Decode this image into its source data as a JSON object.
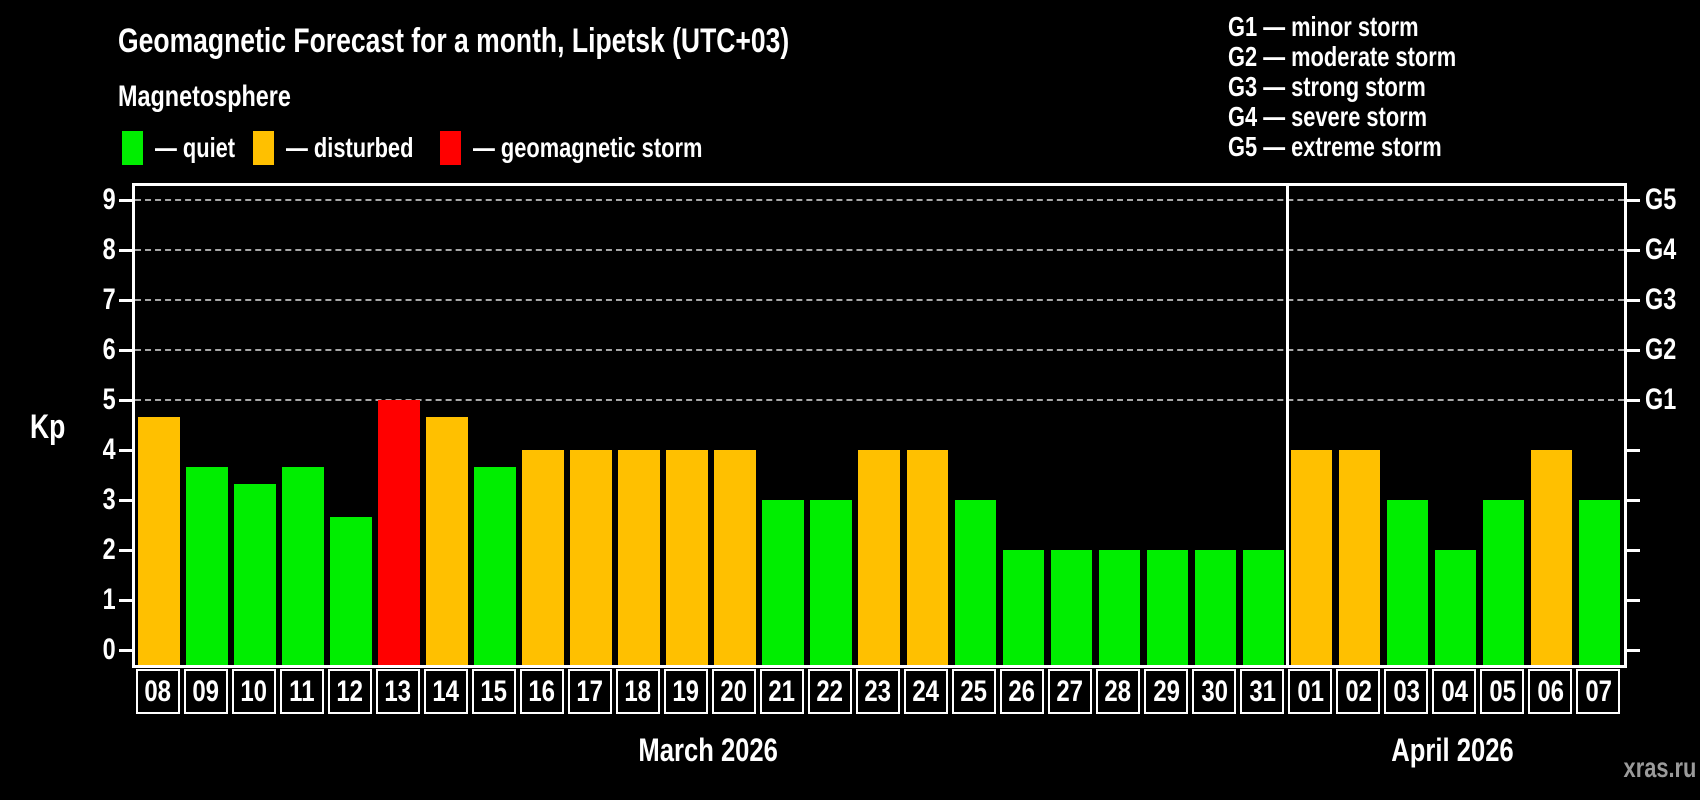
{
  "header": {
    "title": "Geomagnetic Forecast for a month, Lipetsk (UTC+03)",
    "subtitle": "Magnetosphere"
  },
  "legend": {
    "items": [
      {
        "name": "quiet",
        "label": "— quiet",
        "state": "quiet"
      },
      {
        "name": "disturbed",
        "label": "— disturbed",
        "state": "disturbed"
      },
      {
        "name": "storm",
        "label": "— geomagnetic storm",
        "state": "storm"
      }
    ],
    "positions_x": [
      122,
      253,
      440
    ]
  },
  "g_legend": [
    "G1 — minor storm",
    "G2 — moderate storm",
    "G3 — strong storm",
    "G4 — severe storm",
    "G5 — extreme storm"
  ],
  "axis": {
    "y_label": "Kp"
  },
  "months": [
    {
      "label": "March 2026",
      "slots": 24
    },
    {
      "label": "April 2026",
      "slots": 7
    }
  ],
  "watermark": "xras.ru",
  "colors": {
    "quiet": "#00ee00",
    "disturbed": "#ffc000",
    "storm": "#ff0000",
    "background": "#000000",
    "grid": "#a8a8a8",
    "axis": "#ffffff",
    "watermark": "#9b9b9b"
  },
  "chart_data": {
    "type": "bar",
    "title": "Geomagnetic Forecast for a month, Lipetsk (UTC+03)",
    "xlabel": "",
    "ylabel": "Kp",
    "ylim": [
      0,
      9
    ],
    "y_ticks": [
      0,
      1,
      2,
      3,
      4,
      5,
      6,
      7,
      8,
      9
    ],
    "gridlines_at": [
      5,
      6,
      7,
      8,
      9
    ],
    "grid": "dashed, horizontal at Kp 5-9 only",
    "legend_position": "top",
    "right_axis_labels": [
      {
        "kp": 5,
        "label": "G1"
      },
      {
        "kp": 6,
        "label": "G2"
      },
      {
        "kp": 7,
        "label": "G3"
      },
      {
        "kp": 8,
        "label": "G4"
      },
      {
        "kp": 9,
        "label": "G5"
      }
    ],
    "categories": [
      "08",
      "09",
      "10",
      "11",
      "12",
      "13",
      "14",
      "15",
      "16",
      "17",
      "18",
      "19",
      "20",
      "21",
      "22",
      "23",
      "24",
      "25",
      "26",
      "27",
      "28",
      "29",
      "30",
      "31",
      "01",
      "02",
      "03",
      "04",
      "05",
      "06",
      "07"
    ],
    "values": [
      4.67,
      3.67,
      3.33,
      3.67,
      2.67,
      5,
      4.67,
      3.67,
      4,
      4,
      4,
      4,
      4,
      3,
      3,
      4,
      4,
      3,
      2,
      2,
      2,
      2,
      2,
      2,
      4,
      4,
      3,
      2,
      3,
      4,
      3
    ],
    "bars": [
      {
        "day": "08",
        "month": "March 2026",
        "value": 4.67,
        "state": "disturbed"
      },
      {
        "day": "09",
        "month": "March 2026",
        "value": 3.67,
        "state": "quiet"
      },
      {
        "day": "10",
        "month": "March 2026",
        "value": 3.33,
        "state": "quiet"
      },
      {
        "day": "11",
        "month": "March 2026",
        "value": 3.67,
        "state": "quiet"
      },
      {
        "day": "12",
        "month": "March 2026",
        "value": 2.67,
        "state": "quiet"
      },
      {
        "day": "13",
        "month": "March 2026",
        "value": 5.0,
        "state": "storm"
      },
      {
        "day": "14",
        "month": "March 2026",
        "value": 4.67,
        "state": "disturbed"
      },
      {
        "day": "15",
        "month": "March 2026",
        "value": 3.67,
        "state": "quiet"
      },
      {
        "day": "16",
        "month": "March 2026",
        "value": 4.0,
        "state": "disturbed"
      },
      {
        "day": "17",
        "month": "March 2026",
        "value": 4.0,
        "state": "disturbed"
      },
      {
        "day": "18",
        "month": "March 2026",
        "value": 4.0,
        "state": "disturbed"
      },
      {
        "day": "19",
        "month": "March 2026",
        "value": 4.0,
        "state": "disturbed"
      },
      {
        "day": "20",
        "month": "March 2026",
        "value": 4.0,
        "state": "disturbed"
      },
      {
        "day": "21",
        "month": "March 2026",
        "value": 3.0,
        "state": "quiet"
      },
      {
        "day": "22",
        "month": "March 2026",
        "value": 3.0,
        "state": "quiet"
      },
      {
        "day": "23",
        "month": "March 2026",
        "value": 4.0,
        "state": "disturbed"
      },
      {
        "day": "24",
        "month": "March 2026",
        "value": 4.0,
        "state": "disturbed"
      },
      {
        "day": "25",
        "month": "March 2026",
        "value": 3.0,
        "state": "quiet"
      },
      {
        "day": "26",
        "month": "March 2026",
        "value": 2.0,
        "state": "quiet"
      },
      {
        "day": "27",
        "month": "March 2026",
        "value": 2.0,
        "state": "quiet"
      },
      {
        "day": "28",
        "month": "March 2026",
        "value": 2.0,
        "state": "quiet"
      },
      {
        "day": "29",
        "month": "March 2026",
        "value": 2.0,
        "state": "quiet"
      },
      {
        "day": "30",
        "month": "March 2026",
        "value": 2.0,
        "state": "quiet"
      },
      {
        "day": "31",
        "month": "March 2026",
        "value": 2.0,
        "state": "quiet"
      },
      {
        "day": "01",
        "month": "April 2026",
        "value": 4.0,
        "state": "disturbed"
      },
      {
        "day": "02",
        "month": "April 2026",
        "value": 4.0,
        "state": "disturbed"
      },
      {
        "day": "03",
        "month": "April 2026",
        "value": 3.0,
        "state": "quiet"
      },
      {
        "day": "04",
        "month": "April 2026",
        "value": 2.0,
        "state": "quiet"
      },
      {
        "day": "05",
        "month": "April 2026",
        "value": 3.0,
        "state": "quiet"
      },
      {
        "day": "06",
        "month": "April 2026",
        "value": 4.0,
        "state": "disturbed"
      },
      {
        "day": "07",
        "month": "April 2026",
        "value": 3.0,
        "state": "quiet"
      }
    ]
  }
}
